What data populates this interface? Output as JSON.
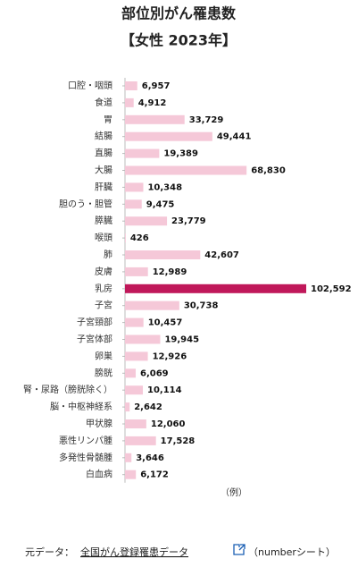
{
  "chart_data": {
    "type": "bar",
    "orientation": "horizontal",
    "title": "部位別がん罹患数",
    "subtitle": "【女性 2023年】",
    "categories": [
      "口腔・咽頭",
      "食道",
      "胃",
      "結腸",
      "直腸",
      "大腸",
      "肝臓",
      "胆のう・胆管",
      "膵臓",
      "喉頭",
      "肺",
      "皮膚",
      "乳房",
      "子宮",
      "子宮頸部",
      "子宮体部",
      "卵巣",
      "膀胱",
      "腎・尿路（膀胱除く）",
      "脳・中枢神経系",
      "甲状腺",
      "悪性リンパ腫",
      "多発性骨髄腫",
      "白血病"
    ],
    "values": [
      6957,
      4912,
      33729,
      49441,
      19389,
      68830,
      10348,
      9475,
      23779,
      426,
      42607,
      12989,
      102592,
      30738,
      10457,
      19945,
      12926,
      6069,
      10114,
      2642,
      12060,
      17528,
      3646,
      6172
    ],
    "value_labels": [
      "6,957",
      "4,912",
      "33,729",
      "49,441",
      "19,389",
      "68,830",
      "10,348",
      "9,475",
      "23,779",
      "426",
      "42,607",
      "12,989",
      "102,592",
      "30,738",
      "10,457",
      "19,945",
      "12,926",
      "6,069",
      "10,114",
      "2,642",
      "12,060",
      "17,528",
      "3,646",
      "6,172"
    ],
    "colors": [
      "#f5c8d8",
      "#f5c8d8",
      "#f5c8d8",
      "#f5c8d8",
      "#f5c8d8",
      "#f5c8d8",
      "#f5c8d8",
      "#f5c8d8",
      "#f5c8d8",
      "#f5c8d8",
      "#f5c8d8",
      "#f5c8d8",
      "#c0185a",
      "#f5c8d8",
      "#f5c8d8",
      "#f5c8d8",
      "#f5c8d8",
      "#f5c8d8",
      "#f5c8d8",
      "#f5c8d8",
      "#f5c8d8",
      "#f5c8d8",
      "#f5c8d8",
      "#f5c8d8"
    ],
    "note": "（例）"
  },
  "footer": {
    "prefix": "元データ：",
    "link": "全国がん登録罹患データ",
    "suffix": "（numberシート）"
  }
}
